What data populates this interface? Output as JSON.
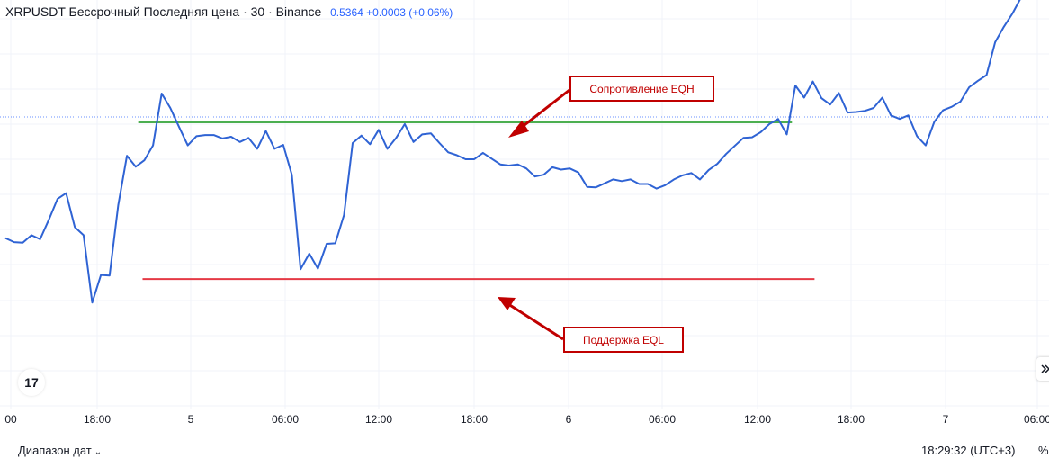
{
  "header": {
    "symbol_title": "XRPUSDT Бессрочный Последняя цена · 30 · Binance",
    "price_info": "0.5364 +0.0003 (+0.06%)"
  },
  "annotations": {
    "resistance_label": "Сопротивление EQH",
    "support_label": "Поддержка EQL"
  },
  "bottom_bar": {
    "date_range_label": "Диапазон дат",
    "clock": "18:29:32 (UTC+3)",
    "percent_label": "%"
  },
  "logo_text": "17",
  "scroll_icon": "chevrons-right-icon",
  "colors": {
    "series": "#2f63d4",
    "resistance": "#4caf50",
    "support": "#e53945",
    "callout": "#c00000"
  },
  "chart_data": {
    "type": "line",
    "title": "XRPUSDT Бессрочный Последняя цена · 30 · Binance",
    "x_tick_labels": [
      "00",
      "18:00",
      "5",
      "06:00",
      "12:00",
      "18:00",
      "6",
      "06:00",
      "12:00",
      "18:00",
      "7",
      "06:00"
    ],
    "x_range": [
      -2,
      109
    ],
    "y_range": [
      0.4,
      1.0
    ],
    "horizontal_lines": [
      {
        "name": "Сопротивление EQH",
        "color": "#4caf50",
        "x_start": 15.3,
        "x_end": 90.6,
        "y": 0.721
      },
      {
        "name": "Поддержка EQL",
        "color": "#e53945",
        "x_start": 15.8,
        "x_end": 93.2,
        "y": 0.449
      }
    ],
    "series": [
      {
        "values": [
          0.52,
          0.513,
          0.512,
          0.525,
          0.518,
          0.552,
          0.588,
          0.598,
          0.539,
          0.525,
          0.408,
          0.456,
          0.455,
          0.577,
          0.663,
          0.644,
          0.655,
          0.681,
          0.771,
          0.746,
          0.713,
          0.681,
          0.697,
          0.699,
          0.699,
          0.693,
          0.696,
          0.687,
          0.694,
          0.675,
          0.706,
          0.675,
          0.682,
          0.63,
          0.466,
          0.493,
          0.467,
          0.51,
          0.511,
          0.56,
          0.685,
          0.698,
          0.683,
          0.708,
          0.675,
          0.694,
          0.718,
          0.687,
          0.7,
          0.702,
          0.685,
          0.669,
          0.664,
          0.657,
          0.657,
          0.668,
          0.658,
          0.648,
          0.646,
          0.648,
          0.641,
          0.627,
          0.63,
          0.643,
          0.639,
          0.641,
          0.634,
          0.609,
          0.608,
          0.615,
          0.622,
          0.619,
          0.622,
          0.614,
          0.614,
          0.606,
          0.612,
          0.622,
          0.629,
          0.633,
          0.622,
          0.638,
          0.649,
          0.666,
          0.68,
          0.694,
          0.695,
          0.704,
          0.718,
          0.727,
          0.7,
          0.785,
          0.764,
          0.792,
          0.763,
          0.752,
          0.772,
          0.738,
          0.739,
          0.741,
          0.746,
          0.764,
          0.733,
          0.727,
          0.733,
          0.697,
          0.681,
          0.722,
          0.742,
          0.748,
          0.757,
          0.782,
          0.793,
          0.803,
          0.86,
          0.887,
          0.91,
          0.938,
          0.978,
          0.937,
          0.943
        ]
      }
    ]
  }
}
